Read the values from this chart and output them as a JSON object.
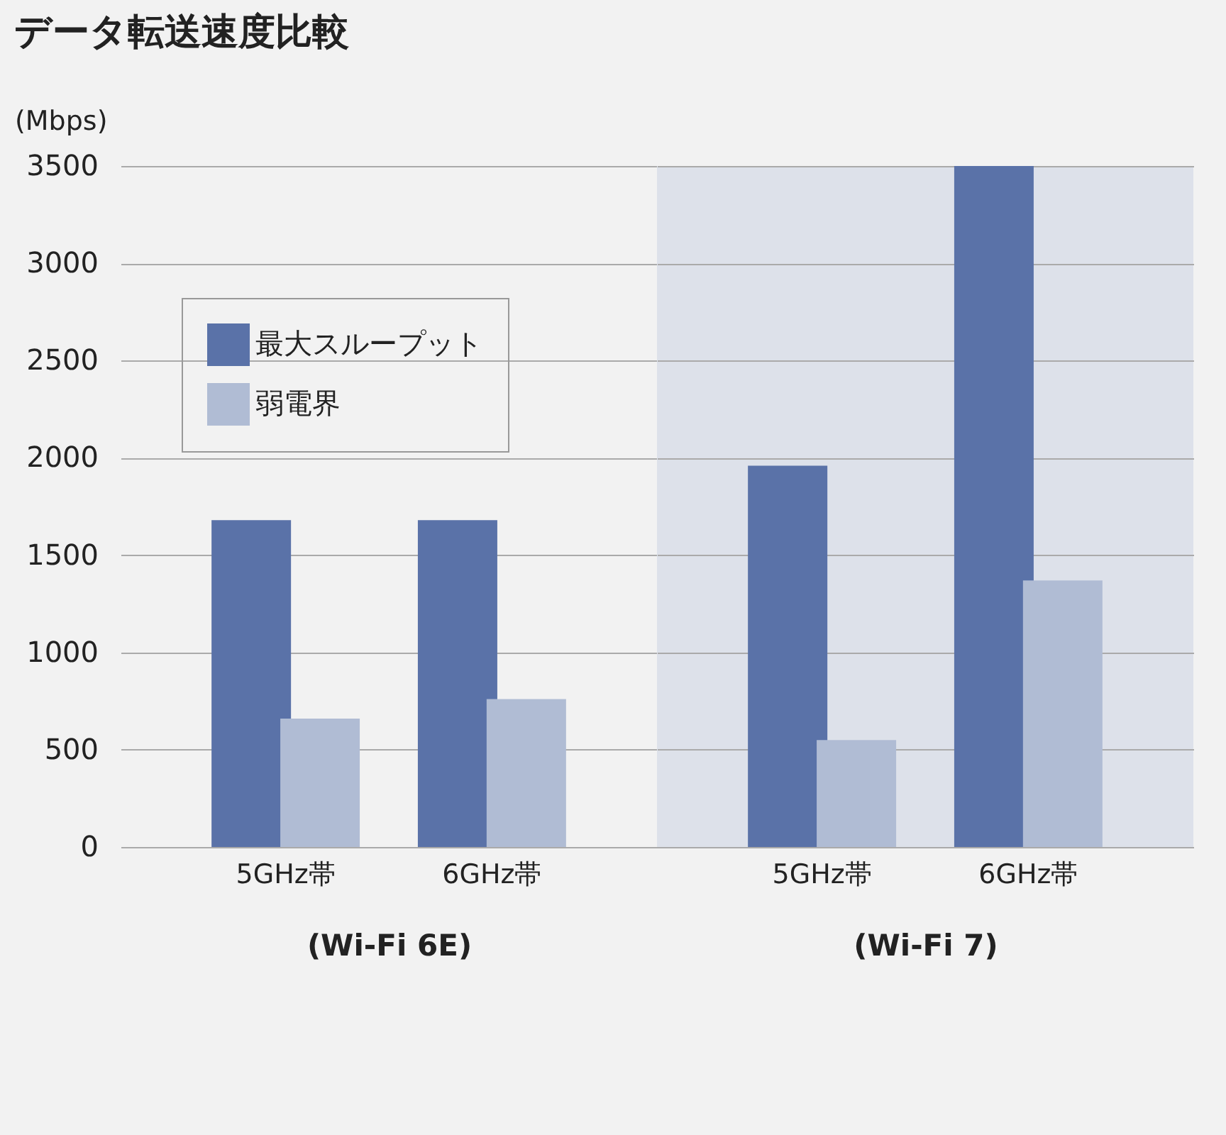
{
  "chart_data": [
    {
      "type": "bar",
      "title": "データ転送速度比較",
      "ylabel": "(Mbps)",
      "xlabel": "(Wi-Fi 6E)",
      "categories": [
        "5GHz帯",
        "6GHz帯"
      ],
      "series": [
        {
          "name": "最大スループット",
          "color": "#5a72a8",
          "values": [
            1680,
            1680
          ]
        },
        {
          "name": "弱電界",
          "color": "#b0bcd4",
          "values": [
            660,
            760
          ]
        }
      ],
      "ylim": [
        0,
        3500
      ],
      "yticks": [
        0,
        500,
        1000,
        1500,
        2000,
        2500,
        3000,
        3500
      ],
      "grid": "y",
      "legend": "top left"
    },
    {
      "type": "bar",
      "xlabel": "(Wi-Fi 7)",
      "categories": [
        "5GHz帯",
        "6GHz帯"
      ],
      "series": [
        {
          "name": "最大スループット",
          "color": "#5a72a8",
          "values": [
            1960,
            3500
          ]
        },
        {
          "name": "弱電界",
          "color": "#b0bcd4",
          "values": [
            550,
            1370
          ]
        }
      ],
      "ylim": [
        0,
        3500
      ],
      "yticks": [
        0,
        500,
        1000,
        1500,
        2000,
        2500,
        3000,
        3500
      ],
      "grid": "y",
      "legend": "top left",
      "tick_labels": "x"
    }
  ]
}
